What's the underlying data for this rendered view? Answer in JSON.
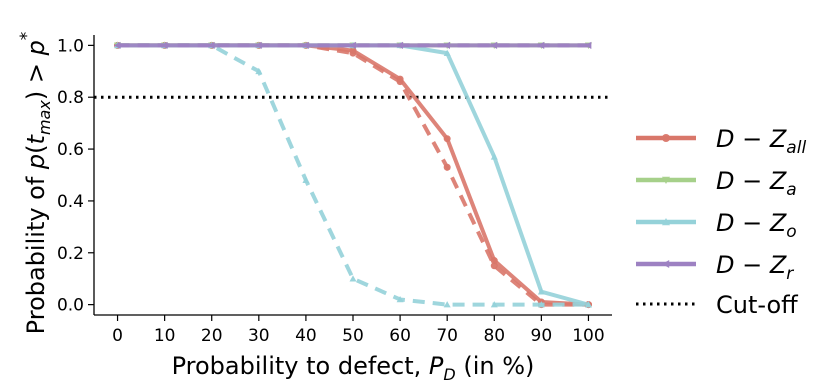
{
  "chart_data": {
    "type": "line",
    "x": [
      0,
      10,
      20,
      30,
      40,
      50,
      60,
      70,
      80,
      90,
      100
    ],
    "xlim": [
      -5,
      105
    ],
    "ylim": [
      -0.04,
      1.04
    ],
    "xticks": [
      "0",
      "10",
      "20",
      "30",
      "40",
      "50",
      "60",
      "70",
      "80",
      "90",
      "100"
    ],
    "yticks": [
      "0.0",
      "0.2",
      "0.4",
      "0.6",
      "0.8",
      "1.0"
    ],
    "xlabel_main": "Probability to defect, ",
    "xlabel_var": "P",
    "xlabel_sub": "D",
    "xlabel_end": " (in %)",
    "ylabel_start": "Probability of ",
    "ylabel_p": "p",
    "ylabel_t": "t",
    "ylabel_sub": "max",
    "ylabel_gt": " > ",
    "ylabel_star": "*",
    "grid": false,
    "legend_position": "right",
    "cutoff": {
      "y": 0.8,
      "label": "Cut-off"
    },
    "series": [
      {
        "name": "D − Z_all",
        "label_main": "D − Z",
        "label_sub": "all",
        "color": "#d9776a",
        "marker": "circle",
        "values_solid": [
          1.0,
          1.0,
          1.0,
          1.0,
          1.0,
          0.98,
          0.87,
          0.64,
          0.17,
          0.01,
          0.0
        ],
        "values_dashed": [
          1.0,
          1.0,
          1.0,
          1.0,
          1.0,
          0.97,
          0.86,
          0.53,
          0.15,
          0.0,
          0.0
        ]
      },
      {
        "name": "D − Z_a",
        "label_main": "D − Z",
        "label_sub": "a",
        "color": "#a6d08a",
        "marker": "triangle-down",
        "values_solid": [
          1.0,
          1.0,
          1.0,
          1.0,
          1.0,
          1.0,
          1.0,
          1.0,
          1.0,
          1.0,
          1.0
        ],
        "values_dashed": [
          1.0,
          1.0,
          1.0,
          1.0,
          1.0,
          1.0,
          1.0,
          1.0,
          1.0,
          1.0,
          1.0
        ]
      },
      {
        "name": "D − Z_o",
        "label_main": "D − Z",
        "label_sub": "o",
        "color": "#95d2d9",
        "marker": "triangle-up",
        "values_solid": [
          1.0,
          1.0,
          1.0,
          1.0,
          1.0,
          1.0,
          1.0,
          0.97,
          0.57,
          0.05,
          0.0
        ],
        "values_dashed": [
          1.0,
          1.0,
          1.0,
          0.9,
          0.48,
          0.1,
          0.02,
          0.0,
          0.0,
          0.0,
          0.0
        ]
      },
      {
        "name": "D − Z_r",
        "label_main": "D − Z",
        "label_sub": "r",
        "color": "#9d81c2",
        "marker": "triangle-left",
        "values_solid": [
          1.0,
          1.0,
          1.0,
          1.0,
          1.0,
          1.0,
          1.0,
          1.0,
          1.0,
          1.0,
          1.0
        ],
        "values_dashed": [
          1.0,
          1.0,
          1.0,
          1.0,
          1.0,
          1.0,
          1.0,
          1.0,
          1.0,
          1.0,
          1.0
        ]
      }
    ]
  }
}
